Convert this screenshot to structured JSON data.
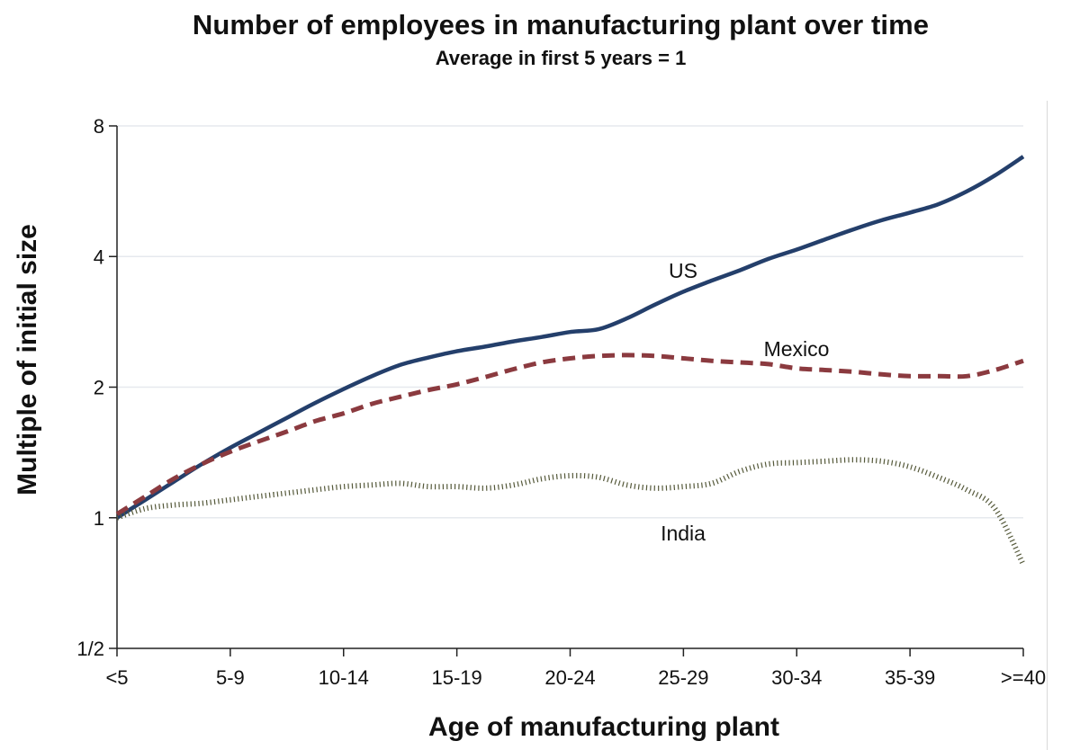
{
  "chart_data": {
    "type": "line",
    "title": "Number of employees in manufacturing plant over time",
    "subtitle": "Average in first 5 years = 1",
    "xlabel": "Age of manufacturing plant",
    "ylabel": "Multiple of initial size",
    "yscale": "log2",
    "ylim": [
      0.5,
      8
    ],
    "yticks": [
      {
        "value": 0.5,
        "label": "1/2"
      },
      {
        "value": 1,
        "label": "1"
      },
      {
        "value": 2,
        "label": "2"
      },
      {
        "value": 4,
        "label": "4"
      },
      {
        "value": 8,
        "label": "8"
      }
    ],
    "categories": [
      "<5",
      "5-9",
      "10-14",
      "15-19",
      "20-24",
      "25-29",
      "30-34",
      "35-39",
      ">=40"
    ],
    "grid": true,
    "series": [
      {
        "name": "US",
        "label": "US",
        "color": "#243f6b",
        "style": "solid",
        "x": [
          0,
          0.25,
          0.5,
          0.75,
          1,
          1.25,
          1.5,
          1.75,
          2,
          2.25,
          2.5,
          2.75,
          3,
          3.25,
          3.5,
          3.75,
          4,
          4.25,
          4.5,
          4.75,
          5,
          5.25,
          5.5,
          5.75,
          6,
          6.25,
          6.5,
          6.75,
          7,
          7.25,
          7.5,
          7.75,
          8
        ],
        "values": [
          1.0,
          1.1,
          1.21,
          1.33,
          1.45,
          1.57,
          1.7,
          1.84,
          1.98,
          2.12,
          2.25,
          2.34,
          2.42,
          2.48,
          2.55,
          2.61,
          2.68,
          2.72,
          2.88,
          3.1,
          3.32,
          3.52,
          3.72,
          3.95,
          4.15,
          4.38,
          4.62,
          4.85,
          5.05,
          5.28,
          5.65,
          6.15,
          6.8
        ]
      },
      {
        "name": "Mexico",
        "label": "Mexico",
        "color": "#8b3a3f",
        "style": "dashed",
        "x": [
          0,
          0.25,
          0.5,
          0.75,
          1,
          1.25,
          1.5,
          1.75,
          2,
          2.25,
          2.5,
          2.75,
          3,
          3.25,
          3.5,
          3.75,
          4,
          4.25,
          4.5,
          4.75,
          5,
          5.25,
          5.5,
          5.75,
          6,
          6.25,
          6.5,
          6.75,
          7,
          7.25,
          7.5,
          7.75,
          8
        ],
        "values": [
          1.02,
          1.12,
          1.23,
          1.33,
          1.42,
          1.5,
          1.58,
          1.67,
          1.74,
          1.83,
          1.9,
          1.97,
          2.03,
          2.11,
          2.2,
          2.28,
          2.33,
          2.36,
          2.37,
          2.36,
          2.33,
          2.3,
          2.28,
          2.26,
          2.21,
          2.19,
          2.17,
          2.14,
          2.12,
          2.12,
          2.12,
          2.19,
          2.3
        ]
      },
      {
        "name": "India",
        "label": "India",
        "color": "#55593a",
        "style": "dotted",
        "x": [
          0,
          0.25,
          0.5,
          0.75,
          1,
          1.25,
          1.5,
          1.75,
          2,
          2.25,
          2.5,
          2.75,
          3,
          3.25,
          3.5,
          3.75,
          4,
          4.25,
          4.5,
          4.75,
          5,
          5.25,
          5.5,
          5.75,
          6,
          6.25,
          6.5,
          6.75,
          7,
          7.25,
          7.5,
          7.75,
          8
        ],
        "values": [
          1.0,
          1.05,
          1.07,
          1.08,
          1.1,
          1.12,
          1.14,
          1.16,
          1.18,
          1.19,
          1.2,
          1.18,
          1.18,
          1.17,
          1.19,
          1.23,
          1.25,
          1.24,
          1.19,
          1.17,
          1.18,
          1.2,
          1.28,
          1.33,
          1.34,
          1.35,
          1.36,
          1.35,
          1.31,
          1.24,
          1.16,
          1.05,
          0.78
        ]
      }
    ]
  }
}
